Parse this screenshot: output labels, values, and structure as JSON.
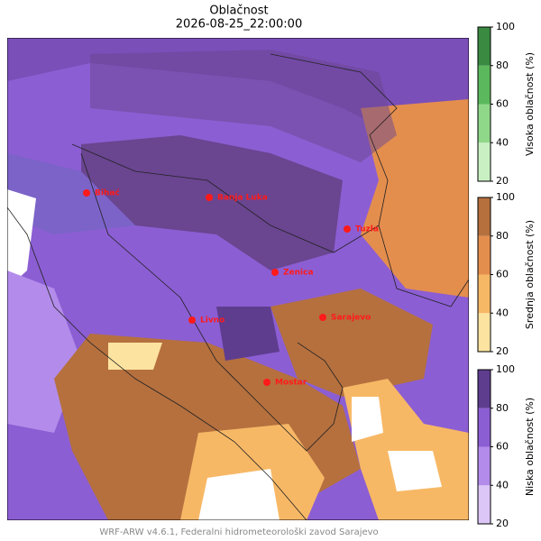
{
  "header": {
    "title": "Oblačnost",
    "subtitle": "2026-08-25_22:00:00"
  },
  "cities": [
    {
      "name": "Bihać"
    },
    {
      "name": "Banja Luka"
    },
    {
      "name": "Tuzla"
    },
    {
      "name": "Zenica"
    },
    {
      "name": "Livno"
    },
    {
      "name": "Sarajevo"
    },
    {
      "name": "Mostar"
    }
  ],
  "colorbars": [
    {
      "label": "Visoka oblačnost (%)",
      "ticks": [
        20,
        40,
        60,
        80,
        100
      ],
      "colors": [
        "#c9f0c2",
        "#8fd88a",
        "#5cb85c",
        "#3a8a42"
      ]
    },
    {
      "label": "Srednja oblačnost (%)",
      "ticks": [
        20,
        40,
        60,
        80,
        100
      ],
      "colors": [
        "#fde3a0",
        "#f7b866",
        "#e48e4e",
        "#b5703e"
      ]
    },
    {
      "label": "Niska oblačnost (%)",
      "ticks": [
        20,
        40,
        60,
        80,
        100
      ],
      "colors": [
        "#dcc6f7",
        "#b38ceb",
        "#8c5ed3",
        "#5e3d8f"
      ]
    }
  ],
  "footer": "WRF-ARW v4.6.1, Federalni hidrometeorološki zavod Sarajevo"
}
